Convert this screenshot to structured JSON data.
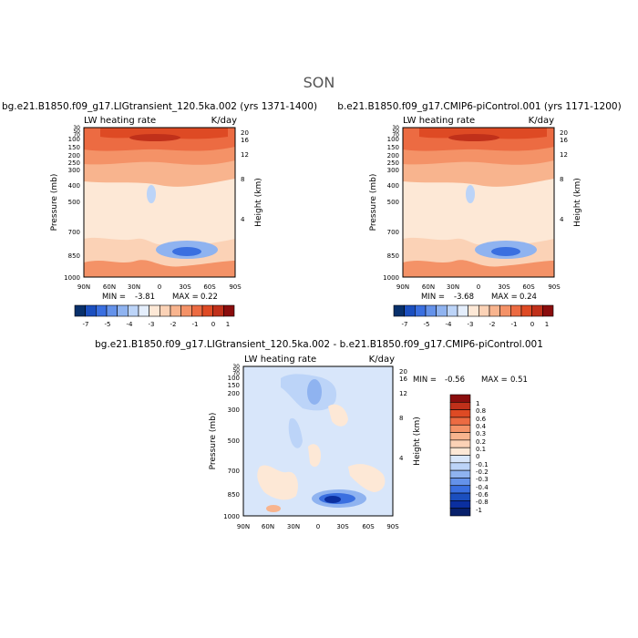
{
  "figure": {
    "title": "SON"
  },
  "chart_data": [
    {
      "type": "heatmap",
      "title": "bg.e21.B1850.f09_g17.LIGtransient_120.5ka.002 (yrs 1371-1400)",
      "variable_label": "LW heating rate",
      "units": "K/day",
      "xlabel": "",
      "x_ticks": [
        "90N",
        "60N",
        "30N",
        "0",
        "30S",
        "60S",
        "90S"
      ],
      "ylabel": "Pressure (mb)",
      "y_ticks": [
        "1000",
        "850",
        "700",
        "500",
        "400",
        "300",
        "250",
        "200",
        "150",
        "100",
        "70",
        "50",
        "30"
      ],
      "ylim": [
        1000,
        30
      ],
      "y_scale": "log",
      "right_axis_label": "Height (km)",
      "right_ticks": [
        "4",
        "8",
        "12",
        "16",
        "20"
      ],
      "min_label": "MIN =",
      "min_value": "-3.81",
      "max_label": "MAX =",
      "max_value": "0.22",
      "colorbar": {
        "orientation": "horizontal",
        "levels": [
          -7,
          -6,
          -5,
          -4.5,
          -4,
          -3.5,
          -3,
          -2.5,
          -2,
          -1.5,
          -1,
          -0.5,
          0,
          0.5,
          1
        ],
        "tick_labels": [
          "-7",
          "-5",
          "-4",
          "-3",
          "-2",
          "-1",
          "0",
          "1"
        ],
        "colors": [
          "#08306b",
          "#1b4fbf",
          "#3a6fe0",
          "#6492ea",
          "#8fb3f0",
          "#bcd4f8",
          "#e4eefc",
          "#fde8d6",
          "#fbd2b6",
          "#f8b48e",
          "#f49267",
          "#ec6b42",
          "#de4a24",
          "#c0301a",
          "#8a0d0d"
        ]
      }
    },
    {
      "type": "heatmap",
      "title": "b.e21.B1850.f09_g17.CMIP6-piControl.001 (yrs 1171-1200)",
      "variable_label": "LW heating rate",
      "units": "K/day",
      "xlabel": "",
      "x_ticks": [
        "90N",
        "60N",
        "30N",
        "0",
        "30S",
        "60S",
        "90S"
      ],
      "ylabel": "Pressure (mb)",
      "y_ticks": [
        "1000",
        "850",
        "700",
        "500",
        "400",
        "300",
        "250",
        "200",
        "150",
        "100",
        "70",
        "50",
        "30"
      ],
      "ylim": [
        1000,
        30
      ],
      "y_scale": "log",
      "right_axis_label": "Height (km)",
      "right_ticks": [
        "4",
        "8",
        "12",
        "16",
        "20"
      ],
      "min_label": "MIN =",
      "min_value": "-3.68",
      "max_label": "MAX =",
      "max_value": "0.24",
      "colorbar": {
        "orientation": "horizontal",
        "levels": [
          -7,
          -6,
          -5,
          -4.5,
          -4,
          -3.5,
          -3,
          -2.5,
          -2,
          -1.5,
          -1,
          -0.5,
          0,
          0.5,
          1
        ],
        "tick_labels": [
          "-7",
          "-5",
          "-4",
          "-3",
          "-2",
          "-1",
          "0",
          "1"
        ],
        "colors": [
          "#08306b",
          "#1b4fbf",
          "#3a6fe0",
          "#6492ea",
          "#8fb3f0",
          "#bcd4f8",
          "#e4eefc",
          "#fde8d6",
          "#fbd2b6",
          "#f8b48e",
          "#f49267",
          "#ec6b42",
          "#de4a24",
          "#c0301a",
          "#8a0d0d"
        ]
      }
    },
    {
      "type": "heatmap",
      "title": "bg.e21.B1850.f09_g17.LIGtransient_120.5ka.002 - b.e21.B1850.f09_g17.CMIP6-piControl.001",
      "variable_label": "LW heating rate",
      "units": "K/day",
      "xlabel": "",
      "x_ticks": [
        "90N",
        "60N",
        "30N",
        "0",
        "30S",
        "60S",
        "90S"
      ],
      "ylabel": "Pressure (mb)",
      "y_ticks": [
        "1000",
        "850",
        "700",
        "500",
        "300",
        "200",
        "150",
        "100",
        "70",
        "50",
        "30"
      ],
      "ylim": [
        1000,
        30
      ],
      "y_scale": "log",
      "right_axis_label": "Height (km)",
      "right_ticks": [
        "4",
        "8",
        "12",
        "16",
        "20"
      ],
      "min_label": "MIN =",
      "min_value": "-0.56",
      "max_label": "MAX =",
      "max_value": "0.51",
      "colorbar": {
        "orientation": "vertical",
        "tick_labels": [
          "1",
          "0.8",
          "0.6",
          "0.4",
          "0.3",
          "0.2",
          "0.1",
          "0",
          "-0.1",
          "-0.2",
          "-0.3",
          "-0.4",
          "-0.6",
          "-0.8",
          "-1"
        ],
        "colors": [
          "#8a0d0d",
          "#c0301a",
          "#de4a24",
          "#ec6b42",
          "#f49267",
          "#f8b48e",
          "#fbd2b6",
          "#fde8d6",
          "#d8e6fa",
          "#bcd4f8",
          "#8fb3f0",
          "#6492ea",
          "#3a6fe0",
          "#1b4fbf",
          "#0b2fa0",
          "#08206b"
        ]
      }
    }
  ]
}
